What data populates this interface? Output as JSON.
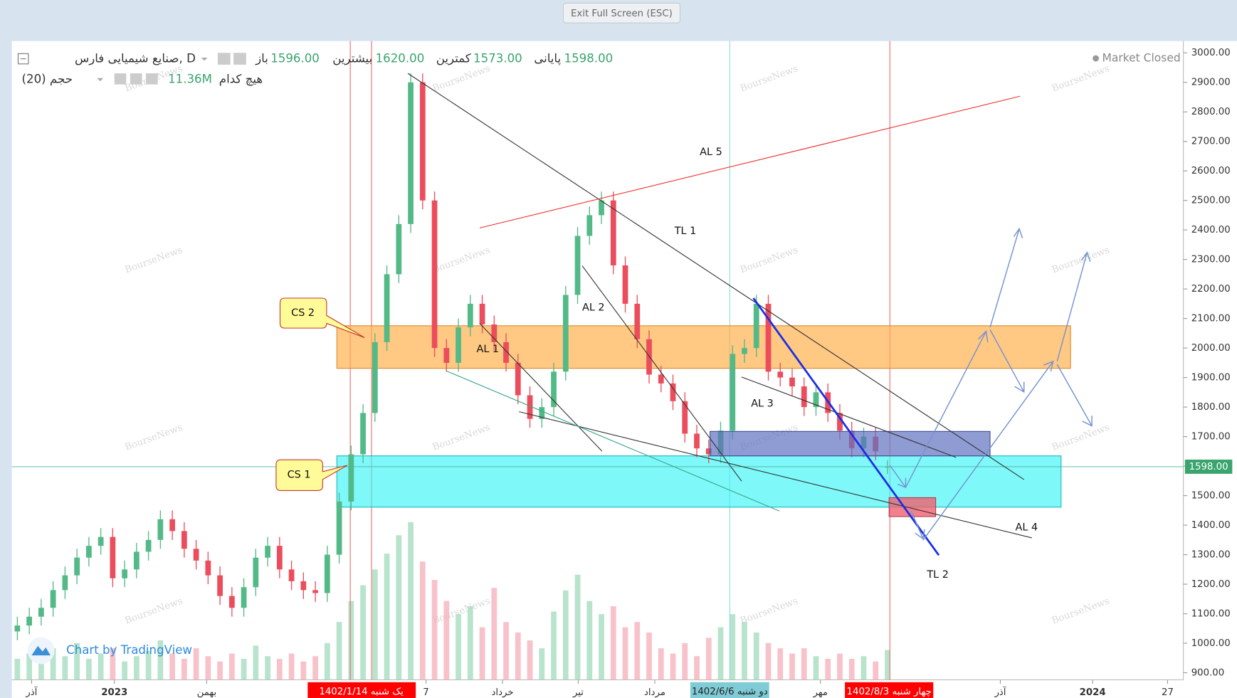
{
  "window": {
    "exit_button": "Exit Full Screen (ESC)"
  },
  "header": {
    "title": "صنایع شیمیایی فارس, D",
    "volume_label": "حجم (20)",
    "ma_label": "هیچ کدام",
    "volume_value": "11.36M",
    "market_status": "Market Closed",
    "open_label": "باز",
    "open": "1596.00",
    "high_label": "بیشترین",
    "high": "1620.00",
    "low_label": "کمترین",
    "low": "1573.00",
    "close_label": "پایانی",
    "close": "1598.00"
  },
  "branding": "Chart by TradingView",
  "watermark": "BourseNews",
  "chart_data": {
    "type": "candlestick",
    "up_color": "#53b987",
    "down_color": "#eb4d5c",
    "volume_up_color": "#a6dcbf",
    "volume_down_color": "#f5b3bd",
    "open": [
      1040,
      1060,
      1090,
      1120,
      1180,
      1230,
      1290,
      1330,
      1360,
      1220,
      1250,
      1310,
      1350,
      1420,
      1380,
      1320,
      1280,
      1230,
      1160,
      1120,
      1190,
      1290,
      1330,
      1250,
      1210,
      1180,
      1170,
      1300,
      1480,
      1640,
      1780,
      2020,
      2250,
      2420,
      2900,
      2500,
      2000,
      1950,
      2070,
      2150,
      2080,
      2020,
      1950,
      1840,
      1760,
      1800,
      1920,
      2180,
      2380,
      2450,
      2500,
      2280,
      2150,
      2030,
      1910,
      1880,
      1820,
      1710,
      1660,
      1640,
      1720,
      1980,
      2000,
      2150,
      1920,
      1900,
      1870,
      1800,
      1850,
      1780,
      1720,
      1660,
      1700,
      1596
    ],
    "high": [
      1090,
      1120,
      1150,
      1210,
      1260,
      1320,
      1360,
      1390,
      1390,
      1280,
      1340,
      1380,
      1450,
      1450,
      1410,
      1350,
      1310,
      1260,
      1190,
      1220,
      1320,
      1360,
      1360,
      1280,
      1240,
      1210,
      1330,
      1510,
      1670,
      1810,
      2050,
      2280,
      2450,
      2930,
      2930,
      2530,
      2030,
      2100,
      2180,
      2180,
      2110,
      2050,
      1980,
      1870,
      1830,
      1950,
      2210,
      2410,
      2480,
      2530,
      2530,
      2310,
      2180,
      2060,
      1940,
      1910,
      1850,
      1740,
      1690,
      1750,
      2010,
      2030,
      2180,
      2180,
      1950,
      1930,
      1900,
      1880,
      1880,
      1810,
      1750,
      1730,
      1730,
      1620
    ],
    "low": [
      1010,
      1030,
      1060,
      1090,
      1150,
      1200,
      1260,
      1300,
      1190,
      1190,
      1220,
      1280,
      1320,
      1350,
      1290,
      1250,
      1200,
      1130,
      1090,
      1090,
      1160,
      1260,
      1220,
      1180,
      1150,
      1140,
      1140,
      1270,
      1450,
      1610,
      1750,
      1990,
      2220,
      2390,
      2470,
      1970,
      1920,
      1920,
      2040,
      2050,
      1990,
      1920,
      1810,
      1730,
      1730,
      1770,
      1890,
      2150,
      2350,
      2420,
      2250,
      2120,
      2000,
      1880,
      1850,
      1790,
      1680,
      1630,
      1610,
      1610,
      1690,
      1950,
      1970,
      1890,
      1870,
      1840,
      1770,
      1770,
      1750,
      1690,
      1630,
      1630,
      1620,
      1573
    ],
    "close": [
      1060,
      1090,
      1120,
      1180,
      1230,
      1290,
      1330,
      1360,
      1220,
      1250,
      1310,
      1350,
      1420,
      1380,
      1320,
      1280,
      1230,
      1160,
      1120,
      1190,
      1290,
      1330,
      1250,
      1210,
      1180,
      1170,
      1300,
      1480,
      1640,
      1780,
      2020,
      2250,
      2420,
      2900,
      2500,
      2000,
      1950,
      2070,
      2150,
      2080,
      2020,
      1950,
      1840,
      1760,
      1800,
      1920,
      2180,
      2380,
      2450,
      2500,
      2280,
      2150,
      2030,
      1910,
      1880,
      1820,
      1710,
      1660,
      1640,
      1720,
      1980,
      2000,
      2150,
      1920,
      1900,
      1870,
      1800,
      1850,
      1780,
      1720,
      1660,
      1700,
      1650,
      1598
    ],
    "volume": [
      8,
      10,
      7,
      12,
      9,
      14,
      8,
      10,
      12,
      7,
      9,
      11,
      15,
      10,
      8,
      12,
      9,
      7,
      10,
      8,
      13,
      9,
      8,
      10,
      7,
      9,
      14,
      22,
      30,
      36,
      42,
      48,
      55,
      60,
      45,
      38,
      30,
      25,
      28,
      20,
      35,
      22,
      18,
      15,
      12,
      26,
      34,
      40,
      30,
      25,
      28,
      20,
      22,
      18,
      12,
      10,
      14,
      9,
      16,
      20,
      25,
      22,
      18,
      14,
      12,
      10,
      12,
      9,
      8,
      10,
      8,
      9,
      7,
      11.36
    ],
    "ylim": [
      876,
      3040
    ],
    "yticks": [
      {
        "value": 900,
        "label": "900.00"
      },
      {
        "value": 1000,
        "label": "1000.00"
      },
      {
        "value": 1100,
        "label": "1100.00"
      },
      {
        "value": 1200,
        "label": "1200.00"
      },
      {
        "value": 1300,
        "label": "1300.00"
      },
      {
        "value": 1400,
        "label": "1400.00"
      },
      {
        "value": 1500,
        "label": "1500.00"
      },
      {
        "value": 1600,
        "label": "1600.00"
      },
      {
        "value": 1700,
        "label": "1700.00"
      },
      {
        "value": 1800,
        "label": "1800.00"
      },
      {
        "value": 1900,
        "label": "1900.00"
      },
      {
        "value": 2000,
        "label": "2000.00"
      },
      {
        "value": 2100,
        "label": "2100.00"
      },
      {
        "value": 2200,
        "label": "2200.00"
      },
      {
        "value": 2300,
        "label": "2300.00"
      },
      {
        "value": 2400,
        "label": "2400.00"
      },
      {
        "value": 2500,
        "label": "2500.00"
      },
      {
        "value": 2600,
        "label": "2600.00"
      },
      {
        "value": 2700,
        "label": "2700.00"
      },
      {
        "value": 2800,
        "label": "2800.00"
      },
      {
        "value": 2900,
        "label": "2900.00"
      },
      {
        "value": 3000,
        "label": "3000.00"
      }
    ],
    "x_labels": [
      "آذر",
      "2023",
      "بهمن",
      "7",
      "خرداد",
      "تیر",
      "مرداد",
      "مهر",
      "آذر",
      "2024",
      "27"
    ],
    "date_markers": [
      "1402/1/14 یک شنبه",
      "1402/6/6 دو شنبه",
      "1402/8/3 چهار شنبه"
    ],
    "annotations": [
      "CS 2",
      "CS 1",
      "AL 1",
      "AL 2",
      "AL 3",
      "AL 4",
      "AL 5",
      "TL 1",
      "TL 2"
    ]
  }
}
